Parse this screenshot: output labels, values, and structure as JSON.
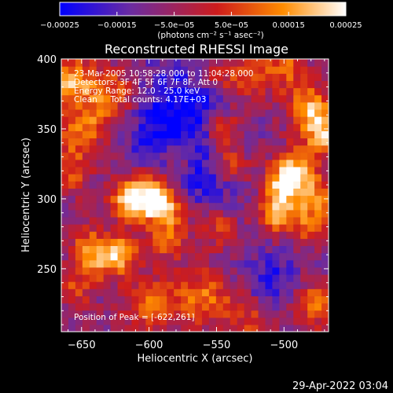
{
  "chart_data": {
    "type": "heatmap",
    "title": "Reconstructed RHESSI Image",
    "xlabel": "Heliocentric X (arcsec)",
    "ylabel": "Heliocentric Y (arcsec)",
    "xlim": [
      -665,
      -467
    ],
    "ylim": [
      205,
      400
    ],
    "xticks": [
      -650,
      -600,
      -550,
      -500
    ],
    "xtick_labels": [
      "−650",
      "−600",
      "−550",
      "−500"
    ],
    "yticks": [
      250,
      300,
      350,
      400
    ],
    "ytick_labels": [
      "250",
      "300",
      "350",
      "400"
    ],
    "colorbar": {
      "range": [
        -0.00025,
        0.00025
      ],
      "ticks": [
        -0.00025,
        -0.00015,
        -5e-05,
        5e-05,
        0.00015,
        0.00025
      ],
      "tick_labels": [
        "−0.00025",
        "−0.00015",
        "−5.0e−05",
        "5.0e−05",
        "0.00015",
        "0.00025"
      ],
      "unit_label": "(photons cm⁻² s⁻¹ asec⁻²)",
      "colormap": [
        "#0000ff",
        "#6c2ca0",
        "#ce1c1c",
        "#ff8c00",
        "#ffffff"
      ]
    },
    "annotations": [
      "23-Mar-2005 10:58:28.000 to 11:04:28.000",
      "Detectors: 3F 4F 5F 6F 7F 8F, Att 0",
      "Energy Range: 12.0 - 25.0 keV",
      "Clean     Total counts: 4.17E+03"
    ],
    "peak_label": "Position of Peak = [-622,261]",
    "peak": [
      -622,
      261
    ],
    "image_grid": {
      "nx": 38,
      "ny": 38
    }
  },
  "footer_date": "29-Apr-2022 03:04"
}
